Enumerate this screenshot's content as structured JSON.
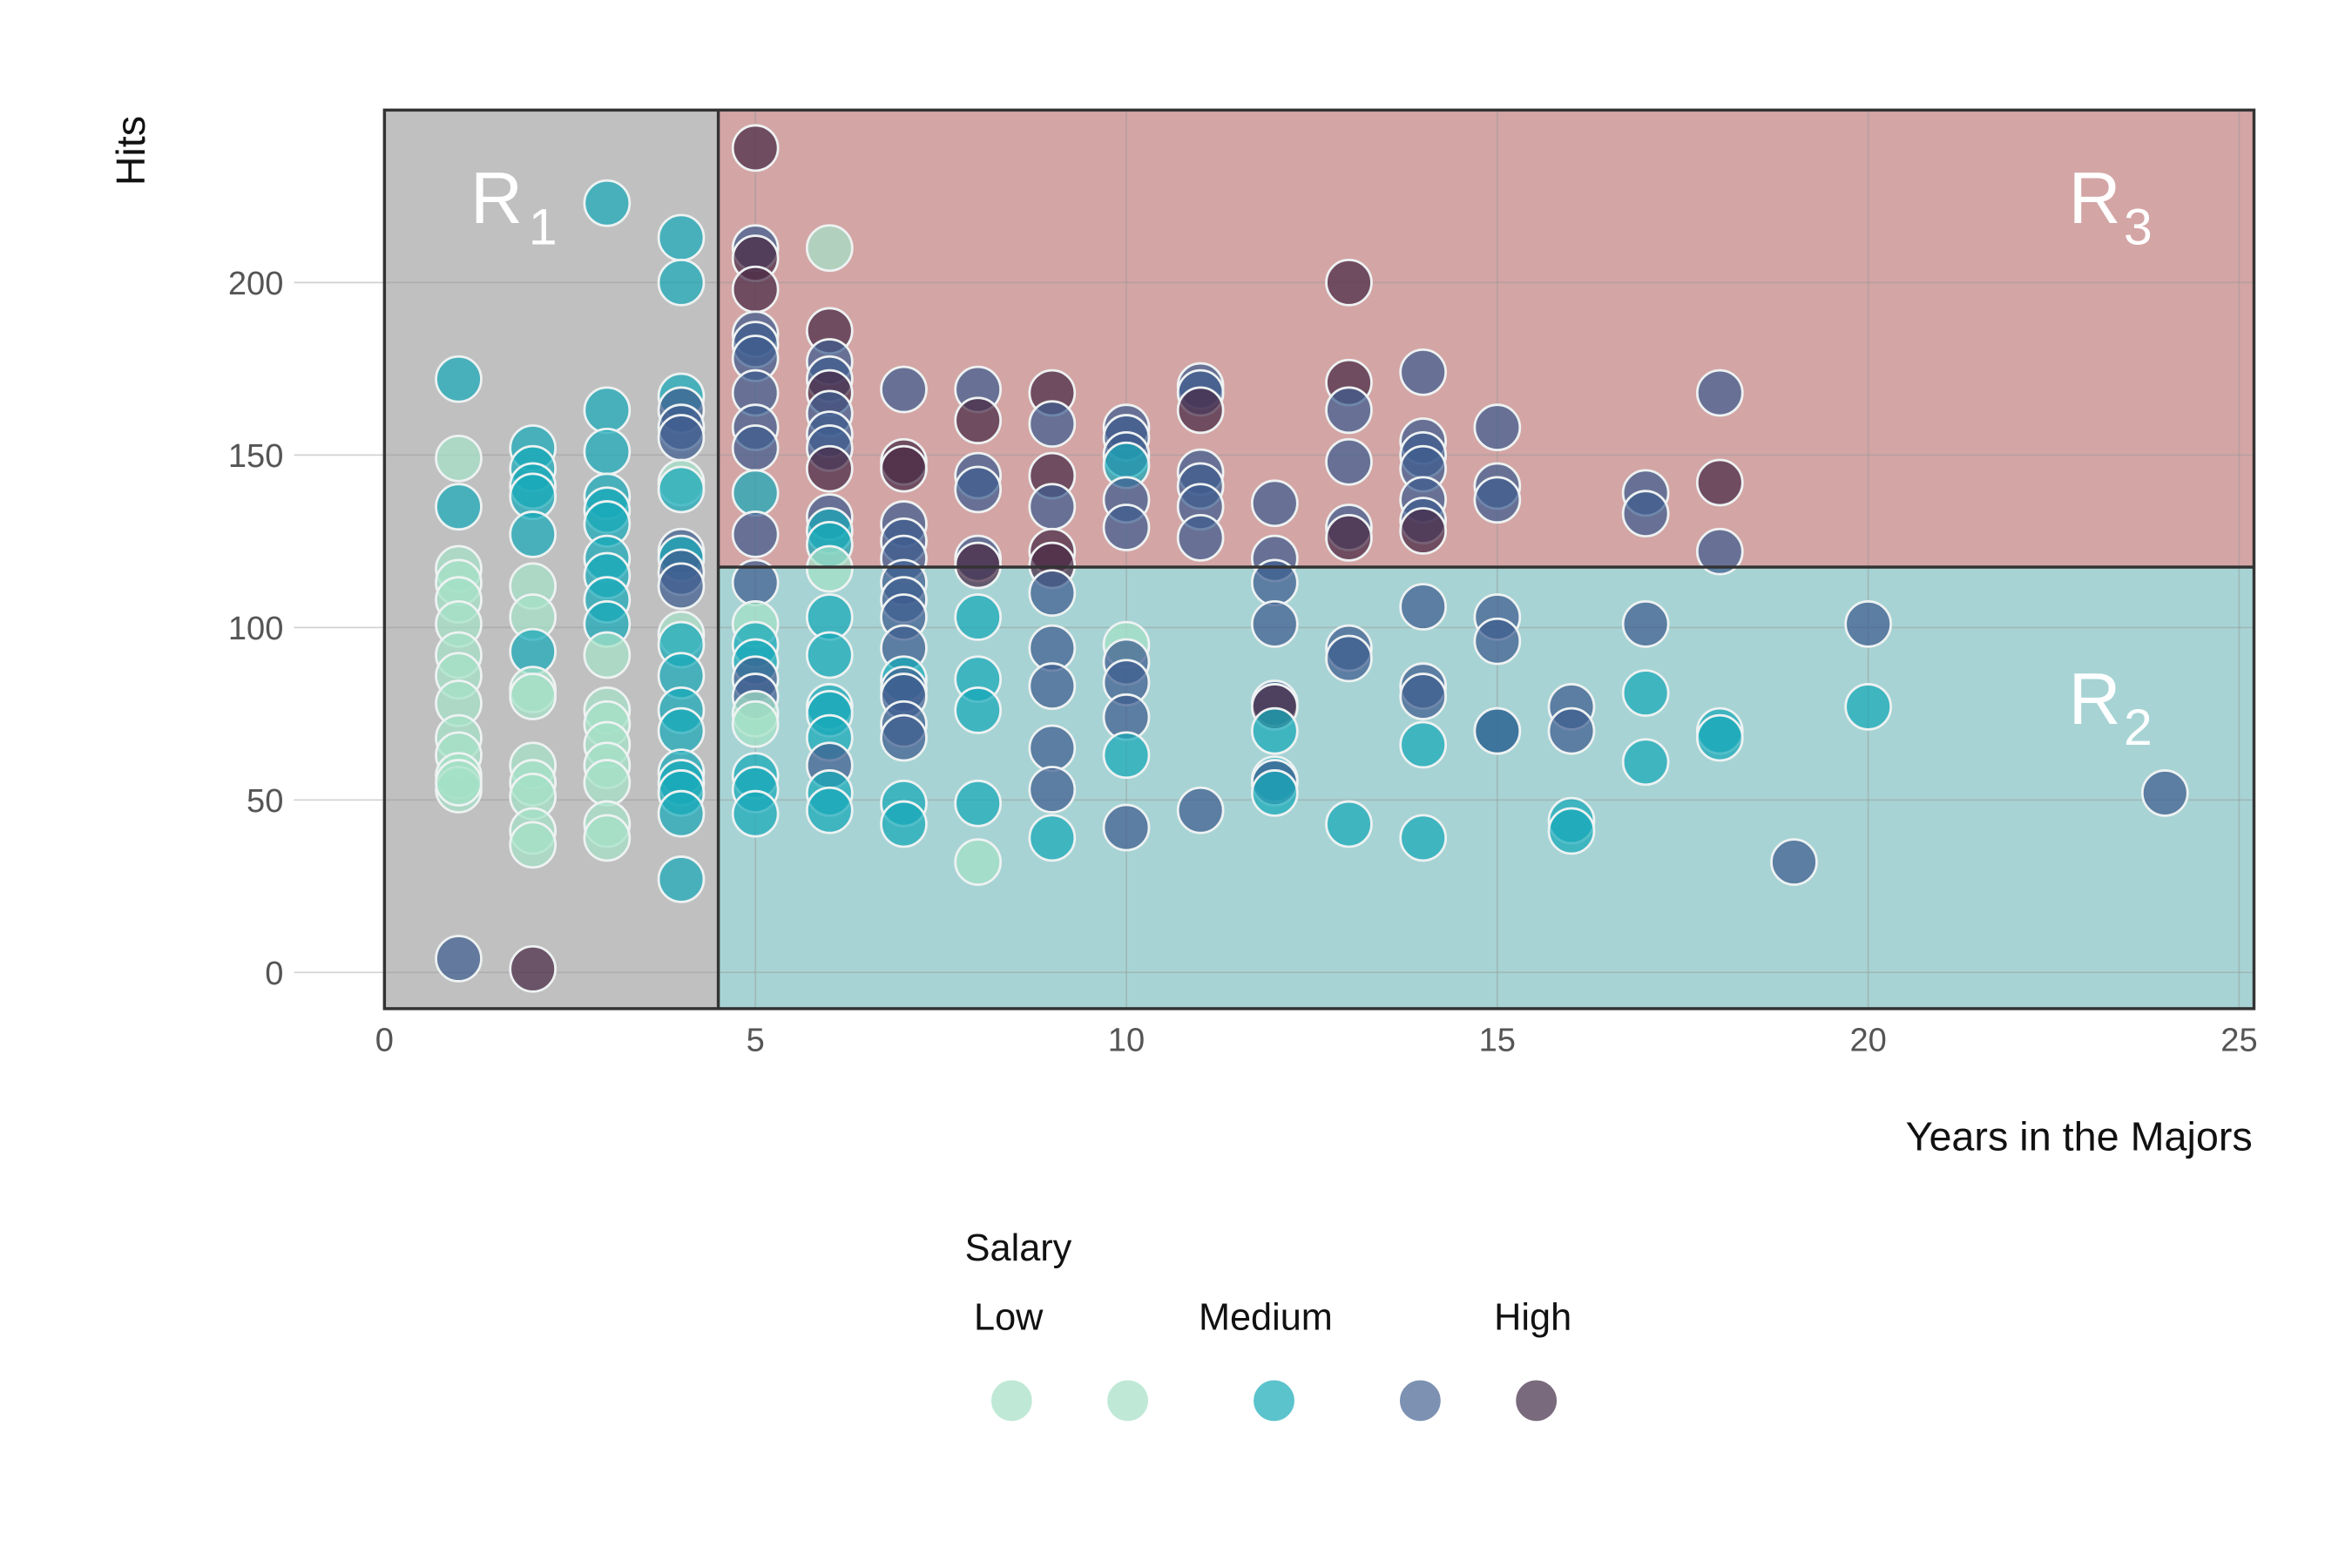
{
  "chart_data": {
    "type": "scatter",
    "title": "",
    "xlabel": "Years in the Majors",
    "ylabel": "Hits",
    "xlim": [
      0,
      25.2
    ],
    "ylim": [
      -10.5,
      250
    ],
    "xticks": [
      0,
      5,
      10,
      15,
      20,
      25
    ],
    "yticks": [
      0,
      50,
      100,
      150,
      200
    ],
    "grid": true,
    "regions": [
      {
        "name": "R",
        "sub": "1",
        "rule": "Years < 4.5",
        "color": "#c0c0c0"
      },
      {
        "name": "R",
        "sub": "2",
        "rule": "Years >= 4.5 and Hits < 117.5",
        "color": "#a7d3d4"
      },
      {
        "name": "R",
        "sub": "3",
        "rule": "Years >= 4.5 and Hits >= 117.5",
        "color": "#d4a5a5"
      }
    ],
    "split_years": 4.5,
    "split_hits": 117.5,
    "class_colors": {
      "L": "#a3e0c6",
      "M": "#17a9b8",
      "H": "#3e5d8f",
      "D": "#4a2a45"
    },
    "legend": {
      "title": "Salary",
      "labels": [
        "Low",
        "Medium",
        "High"
      ],
      "swatches": [
        "#bfe9d6",
        "#bfe9d6",
        "#5bc3cc",
        "#7d92b2",
        "#7a6a7d"
      ],
      "placement": "bottom"
    },
    "points": [
      [
        1,
        172,
        "M"
      ],
      [
        1,
        149,
        "L"
      ],
      [
        1,
        135,
        "M"
      ],
      [
        1,
        117,
        "L"
      ],
      [
        1,
        113,
        "L"
      ],
      [
        1,
        108,
        "L"
      ],
      [
        1,
        101,
        "L"
      ],
      [
        1,
        92,
        "L"
      ],
      [
        1,
        86,
        "L"
      ],
      [
        1,
        78,
        "L"
      ],
      [
        1,
        68,
        "L"
      ],
      [
        1,
        63,
        "L"
      ],
      [
        1,
        57,
        "L"
      ],
      [
        1,
        53,
        "L"
      ],
      [
        1,
        55,
        "L"
      ],
      [
        1,
        4,
        "H"
      ],
      [
        2,
        152,
        "M"
      ],
      [
        2,
        146,
        "M"
      ],
      [
        2,
        141,
        "M"
      ],
      [
        2,
        138,
        "M"
      ],
      [
        2,
        127,
        "M"
      ],
      [
        2,
        112,
        "L"
      ],
      [
        2,
        103,
        "L"
      ],
      [
        2,
        93,
        "M"
      ],
      [
        2,
        82,
        "L"
      ],
      [
        2,
        80,
        "L"
      ],
      [
        2,
        60,
        "L"
      ],
      [
        2,
        55,
        "L"
      ],
      [
        2,
        51,
        "L"
      ],
      [
        2,
        41,
        "L"
      ],
      [
        2,
        37,
        "L"
      ],
      [
        2,
        1,
        "D"
      ],
      [
        3,
        223,
        "M"
      ],
      [
        3,
        163,
        "M"
      ],
      [
        3,
        151,
        "M"
      ],
      [
        3,
        138,
        "M"
      ],
      [
        3,
        134,
        "M"
      ],
      [
        3,
        130,
        "M"
      ],
      [
        3,
        120,
        "M"
      ],
      [
        3,
        115,
        "M"
      ],
      [
        3,
        108,
        "M"
      ],
      [
        3,
        101,
        "M"
      ],
      [
        3,
        92,
        "L"
      ],
      [
        3,
        76,
        "L"
      ],
      [
        3,
        72,
        "L"
      ],
      [
        3,
        66,
        "L"
      ],
      [
        3,
        60,
        "L"
      ],
      [
        3,
        55,
        "L"
      ],
      [
        3,
        43,
        "L"
      ],
      [
        3,
        39,
        "L"
      ],
      [
        4,
        213,
        "M"
      ],
      [
        4,
        200,
        "M"
      ],
      [
        4,
        167,
        "M"
      ],
      [
        4,
        163,
        "H"
      ],
      [
        4,
        158,
        "H"
      ],
      [
        4,
        155,
        "H"
      ],
      [
        4,
        142,
        "L"
      ],
      [
        4,
        140,
        "M"
      ],
      [
        4,
        122,
        "H"
      ],
      [
        4,
        120,
        "M"
      ],
      [
        4,
        116,
        "H"
      ],
      [
        4,
        112,
        "H"
      ],
      [
        4,
        98,
        "L"
      ],
      [
        4,
        95,
        "M"
      ],
      [
        4,
        86,
        "M"
      ],
      [
        4,
        76,
        "M"
      ],
      [
        4,
        70,
        "M"
      ],
      [
        4,
        58,
        "M"
      ],
      [
        4,
        55,
        "M"
      ],
      [
        4,
        52,
        "M"
      ],
      [
        4,
        46,
        "M"
      ],
      [
        4,
        27,
        "M"
      ],
      [
        5,
        239,
        "D"
      ],
      [
        5,
        210,
        "H"
      ],
      [
        5,
        207,
        "D"
      ],
      [
        5,
        198,
        "D"
      ],
      [
        5,
        185,
        "H"
      ],
      [
        5,
        182,
        "H"
      ],
      [
        5,
        178,
        "H"
      ],
      [
        5,
        168,
        "H"
      ],
      [
        5,
        158,
        "H"
      ],
      [
        5,
        152,
        "H"
      ],
      [
        5,
        139,
        "M"
      ],
      [
        5,
        127,
        "H"
      ],
      [
        5,
        113,
        "H"
      ],
      [
        5,
        101,
        "L"
      ],
      [
        5,
        95,
        "M"
      ],
      [
        5,
        90,
        "M"
      ],
      [
        5,
        85,
        "H"
      ],
      [
        5,
        80,
        "H"
      ],
      [
        5,
        75,
        "L"
      ],
      [
        5,
        72,
        "L"
      ],
      [
        5,
        57,
        "M"
      ],
      [
        5,
        53,
        "M"
      ],
      [
        5,
        46,
        "M"
      ],
      [
        6,
        210,
        "L"
      ],
      [
        6,
        186,
        "D"
      ],
      [
        6,
        177,
        "H"
      ],
      [
        6,
        172,
        "H"
      ],
      [
        6,
        168,
        "D"
      ],
      [
        6,
        162,
        "H"
      ],
      [
        6,
        156,
        "H"
      ],
      [
        6,
        152,
        "H"
      ],
      [
        6,
        146,
        "D"
      ],
      [
        6,
        132,
        "H"
      ],
      [
        6,
        128,
        "M"
      ],
      [
        6,
        124,
        "M"
      ],
      [
        6,
        117,
        "L"
      ],
      [
        6,
        103,
        "M"
      ],
      [
        6,
        92,
        "M"
      ],
      [
        6,
        77,
        "M"
      ],
      [
        6,
        75,
        "M"
      ],
      [
        6,
        68,
        "M"
      ],
      [
        6,
        60,
        "H"
      ],
      [
        6,
        52,
        "M"
      ],
      [
        6,
        47,
        "M"
      ],
      [
        7,
        169,
        "H"
      ],
      [
        7,
        148,
        "D"
      ],
      [
        7,
        146,
        "D"
      ],
      [
        7,
        130,
        "H"
      ],
      [
        7,
        125,
        "H"
      ],
      [
        7,
        120,
        "H"
      ],
      [
        7,
        113,
        "H"
      ],
      [
        7,
        108,
        "H"
      ],
      [
        7,
        103,
        "H"
      ],
      [
        7,
        94,
        "H"
      ],
      [
        7,
        85,
        "M"
      ],
      [
        7,
        82,
        "H"
      ],
      [
        7,
        80,
        "H"
      ],
      [
        7,
        72,
        "H"
      ],
      [
        7,
        68,
        "H"
      ],
      [
        7,
        49,
        "M"
      ],
      [
        7,
        43,
        "M"
      ],
      [
        8,
        169,
        "H"
      ],
      [
        8,
        160,
        "D"
      ],
      [
        8,
        144,
        "H"
      ],
      [
        8,
        140,
        "H"
      ],
      [
        8,
        120,
        "H"
      ],
      [
        8,
        118,
        "D"
      ],
      [
        8,
        103,
        "M"
      ],
      [
        8,
        85,
        "M"
      ],
      [
        8,
        76,
        "M"
      ],
      [
        8,
        49,
        "M"
      ],
      [
        8,
        32,
        "L"
      ],
      [
        9,
        168,
        "D"
      ],
      [
        9,
        159,
        "H"
      ],
      [
        9,
        144,
        "D"
      ],
      [
        9,
        135,
        "H"
      ],
      [
        9,
        122,
        "D"
      ],
      [
        9,
        118,
        "D"
      ],
      [
        9,
        110,
        "H"
      ],
      [
        9,
        94,
        "H"
      ],
      [
        9,
        83,
        "H"
      ],
      [
        9,
        65,
        "H"
      ],
      [
        9,
        53,
        "H"
      ],
      [
        9,
        39,
        "M"
      ],
      [
        10,
        158,
        "H"
      ],
      [
        10,
        155,
        "H"
      ],
      [
        10,
        150,
        "H"
      ],
      [
        10,
        147,
        "M"
      ],
      [
        10,
        137,
        "H"
      ],
      [
        10,
        129,
        "H"
      ],
      [
        10,
        95,
        "L"
      ],
      [
        10,
        90,
        "H"
      ],
      [
        10,
        84,
        "H"
      ],
      [
        10,
        74,
        "H"
      ],
      [
        10,
        63,
        "M"
      ],
      [
        10,
        42,
        "H"
      ],
      [
        11,
        170,
        "H"
      ],
      [
        11,
        168,
        "H"
      ],
      [
        11,
        163,
        "D"
      ],
      [
        11,
        145,
        "H"
      ],
      [
        11,
        141,
        "H"
      ],
      [
        11,
        135,
        "H"
      ],
      [
        11,
        126,
        "H"
      ],
      [
        11,
        47,
        "H"
      ],
      [
        12,
        136,
        "H"
      ],
      [
        12,
        120,
        "H"
      ],
      [
        12,
        113,
        "H"
      ],
      [
        12,
        101,
        "H"
      ],
      [
        12,
        78,
        "H"
      ],
      [
        12,
        77,
        "D"
      ],
      [
        12,
        70,
        "M"
      ],
      [
        12,
        56,
        "M"
      ],
      [
        12,
        55,
        "H"
      ],
      [
        12,
        52,
        "M"
      ],
      [
        13,
        200,
        "D"
      ],
      [
        13,
        171,
        "D"
      ],
      [
        13,
        163,
        "H"
      ],
      [
        13,
        148,
        "H"
      ],
      [
        13,
        129,
        "H"
      ],
      [
        13,
        126,
        "D"
      ],
      [
        13,
        94,
        "H"
      ],
      [
        13,
        91,
        "H"
      ],
      [
        13,
        43,
        "M"
      ],
      [
        14,
        174,
        "H"
      ],
      [
        14,
        154,
        "H"
      ],
      [
        14,
        150,
        "H"
      ],
      [
        14,
        146,
        "H"
      ],
      [
        14,
        137,
        "H"
      ],
      [
        14,
        131,
        "H"
      ],
      [
        14,
        128,
        "D"
      ],
      [
        14,
        106,
        "H"
      ],
      [
        14,
        83,
        "H"
      ],
      [
        14,
        80,
        "H"
      ],
      [
        14,
        66,
        "M"
      ],
      [
        14,
        39,
        "M"
      ],
      [
        15,
        158,
        "H"
      ],
      [
        15,
        141,
        "H"
      ],
      [
        15,
        137,
        "H"
      ],
      [
        15,
        103,
        "H"
      ],
      [
        15,
        96,
        "H"
      ],
      [
        15,
        70,
        "M"
      ],
      [
        15,
        70,
        "H"
      ],
      [
        16,
        77,
        "H"
      ],
      [
        16,
        70,
        "H"
      ],
      [
        16,
        44,
        "M"
      ],
      [
        16,
        41,
        "M"
      ],
      [
        17,
        139,
        "H"
      ],
      [
        17,
        133,
        "H"
      ],
      [
        17,
        101,
        "H"
      ],
      [
        17,
        81,
        "M"
      ],
      [
        17,
        61,
        "M"
      ],
      [
        18,
        168,
        "H"
      ],
      [
        18,
        142,
        "D"
      ],
      [
        18,
        122,
        "H"
      ],
      [
        18,
        70,
        "M"
      ],
      [
        18,
        68,
        "M"
      ],
      [
        19,
        32,
        "H"
      ],
      [
        20,
        101,
        "H"
      ],
      [
        20,
        77,
        "M"
      ],
      [
        24,
        52,
        "H"
      ]
    ]
  }
}
